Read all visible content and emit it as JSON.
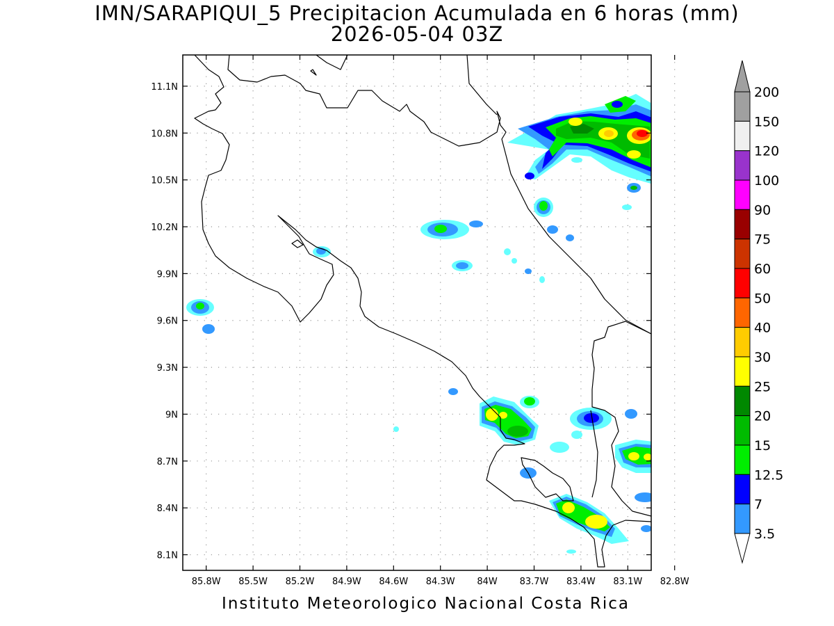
{
  "title": {
    "line1": "IMN/SARAPIQUI_5 Precipitacion Acumulada en 6 horas (mm)",
    "line2": "2026-05-04 03Z"
  },
  "footer": "Instituto Meteorologico Nacional Costa Rica",
  "axes": {
    "lat_ticks": [
      "11.1N",
      "10.8N",
      "10.5N",
      "10.2N",
      "9.9N",
      "9.6N",
      "9.3N",
      "9N",
      "8.7N",
      "8.4N",
      "8.1N"
    ],
    "lon_ticks": [
      "85.8W",
      "85.5W",
      "85.2W",
      "84.9W",
      "84.6W",
      "84.3W",
      "84W",
      "83.7W",
      "83.4W",
      "83.1W",
      "82.8W"
    ],
    "lat_range": [
      8.0,
      11.3
    ],
    "lon_range": [
      -85.95,
      -82.95
    ],
    "grid": true
  },
  "colorbar": {
    "labels": [
      "3.5",
      "7",
      "12.5",
      "15",
      "20",
      "25",
      "30",
      "40",
      "50",
      "60",
      "75",
      "90",
      "100",
      "120",
      "150",
      "200"
    ],
    "colors": [
      "#66ffff",
      "#3399ff",
      "#0000ff",
      "#00ee00",
      "#00bb00",
      "#008800",
      "#ffff00",
      "#ffcc00",
      "#ff6600",
      "#ff0000",
      "#cc3300",
      "#990000",
      "#ff00ff",
      "#9933cc",
      "#f0f0f0",
      "#a0a0a0"
    ],
    "under_color": "#ffffff",
    "over_color": "#a0a0a0"
  }
}
